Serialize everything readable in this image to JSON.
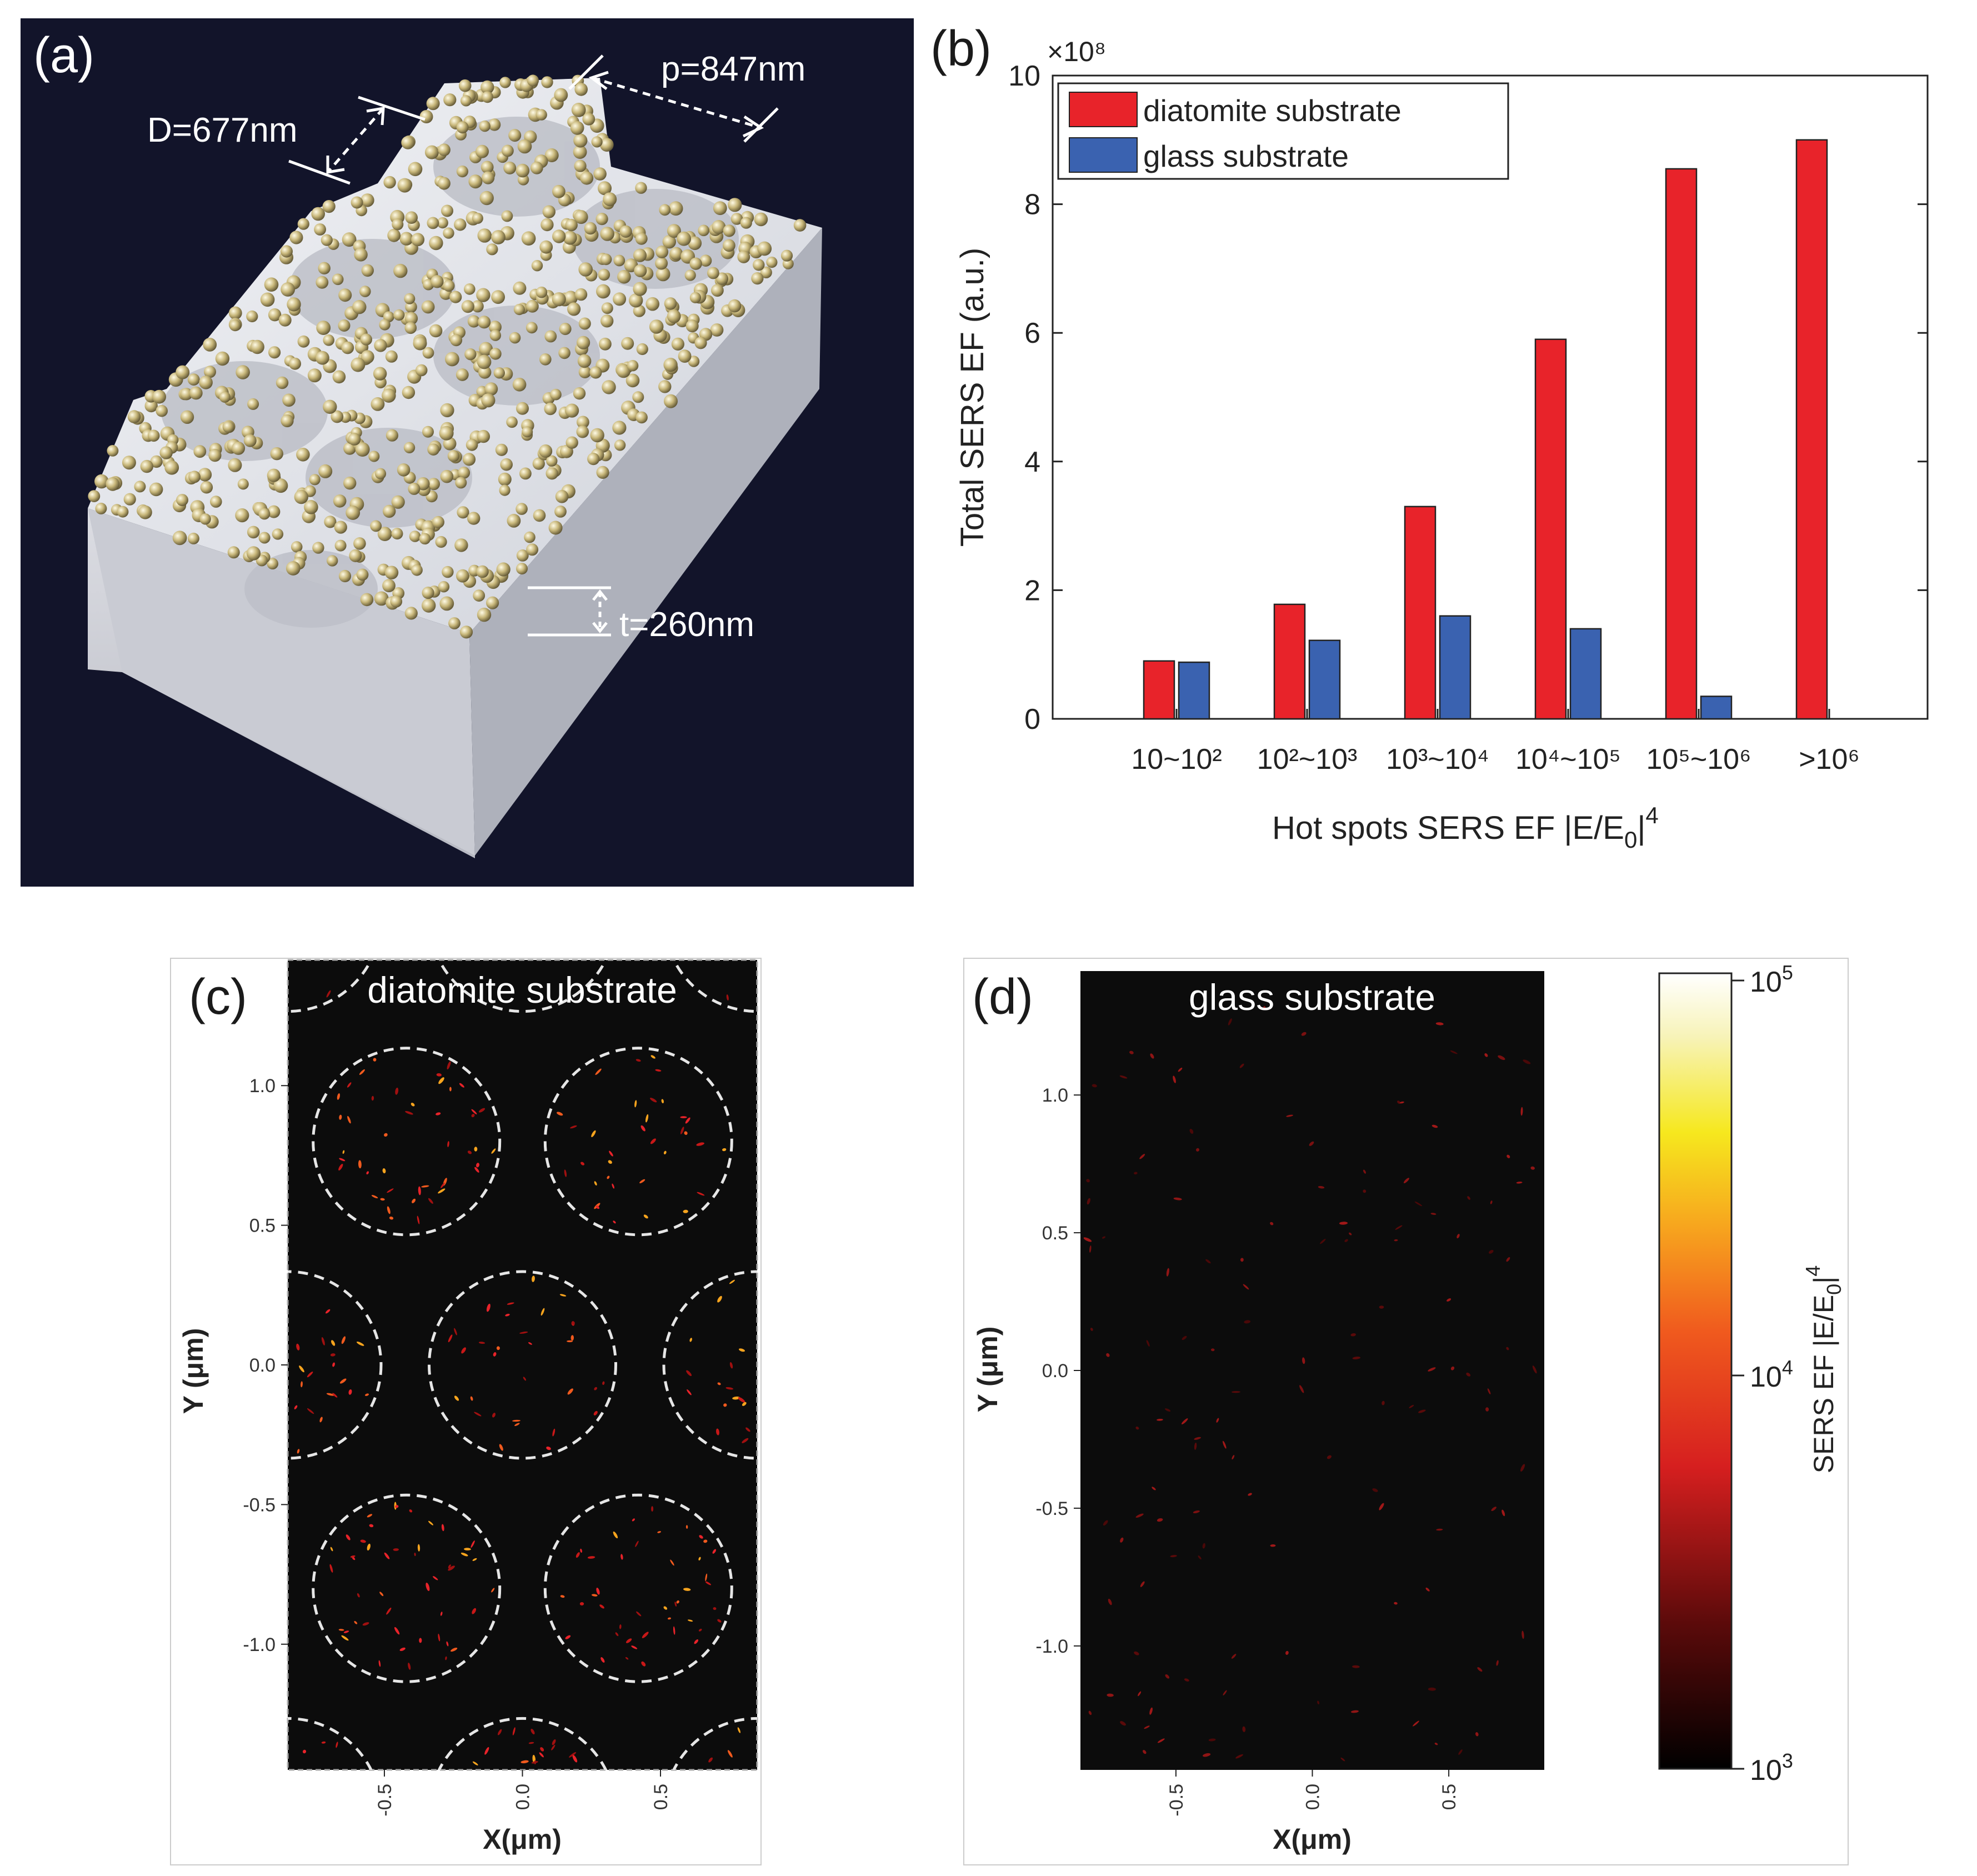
{
  "colors": {
    "panel_a_bg": "#12142a",
    "diatomite": "#e8232a",
    "glass": "#3a62b0",
    "dashed_circle": "#e6e6e6",
    "map_bg": "#0c0c0c"
  },
  "panel_a": {
    "label": "(a)",
    "dim_D": "D=677nm",
    "dim_p": "p=847nm",
    "dim_t": "t=260nm",
    "image_description": "3D model of diatomite substrate with gold nanoparticles"
  },
  "chart_data": [
    {
      "type": "bar",
      "panel_label": "(b)",
      "categories": [
        "10~10²",
        "10²~10³",
        "10³~10⁴",
        "10⁴~10⁵",
        "10⁵~10⁶",
        ">10⁶"
      ],
      "series": [
        {
          "name": "diatomite substrate",
          "values": [
            0.9,
            1.78,
            3.3,
            5.9,
            8.55,
            9.0
          ]
        },
        {
          "name": "glass substrate",
          "values": [
            0.88,
            1.22,
            1.6,
            1.4,
            0.35,
            0.0
          ]
        }
      ],
      "scale_multiplier": "×10⁸",
      "ylabel": "Total SERS EF (a.u.)",
      "xlabel_parts": {
        "main": "Hot spots SERS EF |E/E",
        "sub": "0",
        "rest": "|",
        "sup": "4"
      },
      "ylim": [
        0,
        10
      ],
      "yticks": [
        0,
        2,
        4,
        6,
        8,
        10
      ],
      "legend_position": "top-left"
    },
    {
      "type": "heatmap",
      "panel_label": "(c)",
      "title": "diatomite substrate",
      "xlabel": "X(μm)",
      "ylabel": "Y (μm)",
      "xticks": [
        "-0.5",
        "0.0",
        "0.5"
      ],
      "yticks": [
        "1.0",
        "0.5",
        "0.0",
        "-0.5",
        "-1.0"
      ],
      "xlim": [
        -0.85,
        0.85
      ],
      "ylim": [
        -1.45,
        1.45
      ]
    },
    {
      "type": "heatmap",
      "panel_label": "(d)",
      "title": "glass substrate",
      "xlabel": "X(μm)",
      "ylabel": "Y (μm)",
      "xticks": [
        "-0.5",
        "0.0",
        "0.5"
      ],
      "yticks": [
        "1.0",
        "0.5",
        "0.0",
        "-0.5",
        "-1.0"
      ],
      "xlim": [
        -0.85,
        0.85
      ],
      "ylim": [
        -1.45,
        1.45
      ]
    }
  ],
  "colorbar": {
    "label_main": "SERS EF |E/E",
    "label_sub": "0",
    "label_rest": "|",
    "label_sup": "4",
    "tick_top_base": "10",
    "tick_top_exp": "5",
    "tick_mid_base": "10",
    "tick_mid_exp": "4",
    "tick_bot_base": "10",
    "tick_bot_exp": "3"
  }
}
